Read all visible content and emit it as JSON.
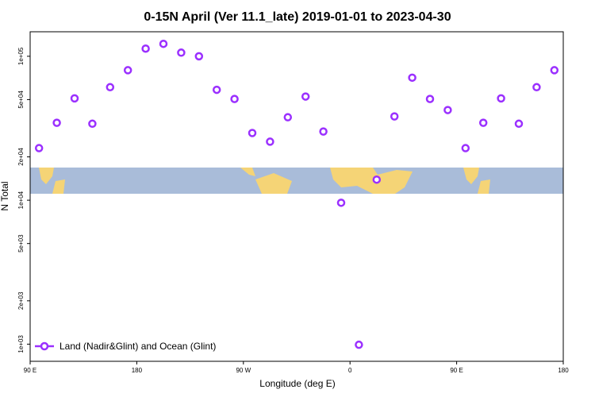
{
  "chart_data": {
    "type": "scatter",
    "title": "0-15N April (Ver 11.1_late)   2019-01-01 to 2023-04-30",
    "x_label": "Longitude (deg E)",
    "y_label": "N Total",
    "log_y": true,
    "xlim": [
      90,
      540
    ],
    "xticks": [
      {
        "value": 90,
        "label": "90 E"
      },
      {
        "value": 180,
        "label": "180"
      },
      {
        "value": 270,
        "label": "90 W"
      },
      {
        "value": 360,
        "label": "0"
      },
      {
        "value": 450,
        "label": "90 E"
      },
      {
        "value": 540,
        "label": "180"
      }
    ],
    "ylim": [
      760,
      148000
    ],
    "yticks": [
      {
        "value": 1000,
        "label": "1e+03"
      },
      {
        "value": 2000,
        "label": "2e+03"
      },
      {
        "value": 5000,
        "label": "5e+03"
      },
      {
        "value": 10000,
        "label": "1e+04"
      },
      {
        "value": 20000,
        "label": "2e+04"
      },
      {
        "value": 50000,
        "label": "5e+04"
      },
      {
        "value": 100000,
        "label": "1e+05"
      }
    ],
    "legend_position": "bottom-left",
    "series": [
      {
        "name": "Land (Nadir&Glint) and Ocean (Glint)",
        "color": "#9b30ff",
        "x": [
          97.5,
          112.5,
          127.5,
          142.5,
          157.5,
          172.5,
          187.5,
          202.5,
          217.5,
          232.5,
          247.5,
          262.5,
          277.5,
          292.5,
          307.5,
          322.5,
          337.5,
          352.5,
          367.5,
          382.5,
          397.5,
          412.5,
          427.5,
          442.5,
          457.5,
          472.5,
          487.5,
          502.5,
          517.5,
          532.5
        ],
        "values": [
          23000,
          34500,
          51000,
          34000,
          61000,
          80000,
          113000,
          122000,
          106000,
          100000,
          58500,
          50500,
          29300,
          25500,
          37700,
          52500,
          30000,
          9600,
          990,
          13900,
          38200,
          71000,
          50500,
          42300,
          23000,
          34500,
          51000,
          34000,
          61000,
          80000
        ]
      }
    ]
  }
}
